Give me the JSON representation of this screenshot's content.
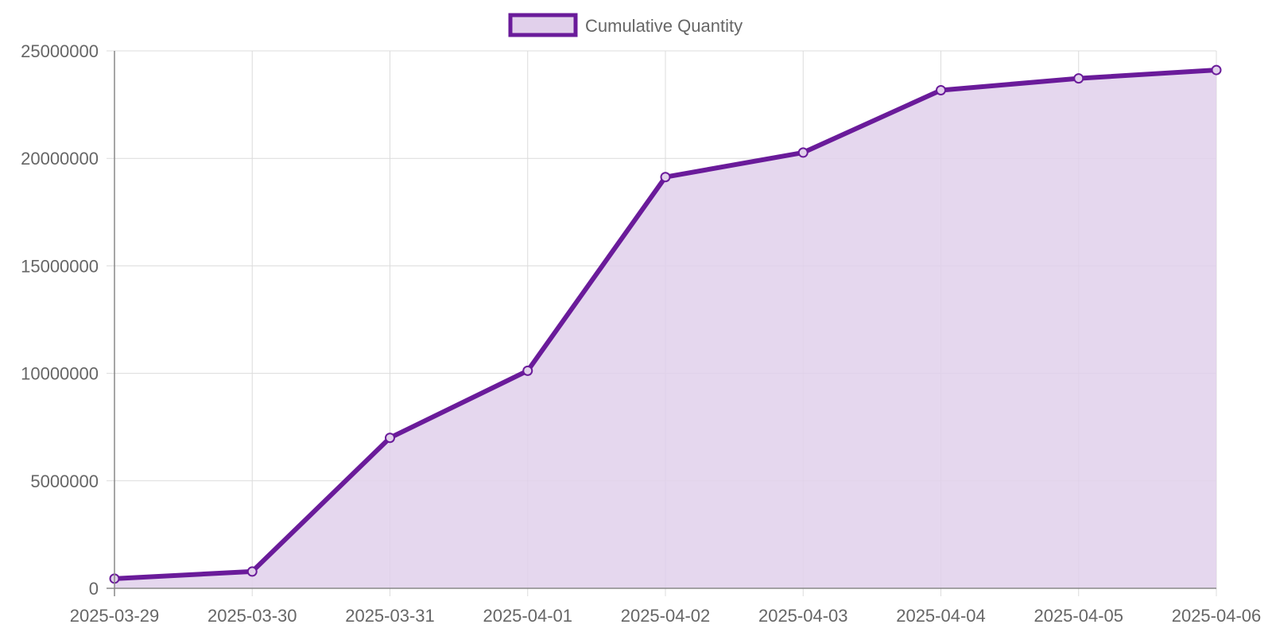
{
  "legend": {
    "label": "Cumulative Quantity",
    "position": "top"
  },
  "colors": {
    "line": "#6a1b9a",
    "fill": "#e1d0eb",
    "grid": "#dcdcdc",
    "axis": "#888888",
    "text": "#666666"
  },
  "chart_data": {
    "type": "area",
    "title": "",
    "xlabel": "",
    "ylabel": "",
    "categories": [
      "2025-03-29",
      "2025-03-30",
      "2025-03-31",
      "2025-04-01",
      "2025-04-02",
      "2025-04-03",
      "2025-04-04",
      "2025-04-05",
      "2025-04-06"
    ],
    "series": [
      {
        "name": "Cumulative Quantity",
        "values": [
          450000,
          780000,
          7000000,
          10120000,
          19130000,
          20270000,
          23170000,
          23720000,
          24110000
        ]
      }
    ],
    "ylim": [
      0,
      25000000
    ],
    "yticks": [
      0,
      5000000,
      10000000,
      15000000,
      20000000,
      25000000
    ],
    "ytick_labels": [
      "0",
      "5000000",
      "10000000",
      "15000000",
      "20000000",
      "25000000"
    ],
    "grid": true,
    "legend_position": "top"
  }
}
